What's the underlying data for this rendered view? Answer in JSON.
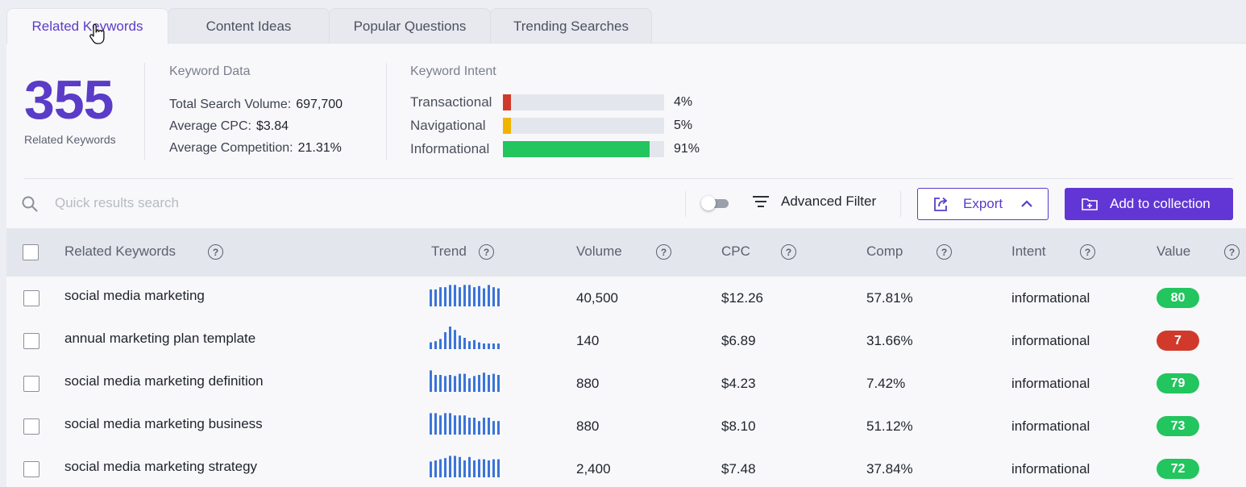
{
  "tabs": [
    {
      "label": "Related Keywords",
      "active": true
    },
    {
      "label": "Content Ideas",
      "active": false
    },
    {
      "label": "Popular Questions",
      "active": false
    },
    {
      "label": "Trending Searches",
      "active": false
    }
  ],
  "summary": {
    "count": "355",
    "count_label": "Related Keywords",
    "keyword_data": {
      "title": "Keyword Data",
      "items": [
        {
          "label": "Total Search Volume:",
          "value": "697,700"
        },
        {
          "label": "Average CPC:",
          "value": "$3.84"
        },
        {
          "label": "Average Competition:",
          "value": "21.31%"
        }
      ]
    },
    "keyword_intent": {
      "title": "Keyword Intent",
      "items": [
        {
          "label": "Transactional",
          "pct": "4%",
          "fraction": 0.04,
          "color": "#d13a2b"
        },
        {
          "label": "Navigational",
          "pct": "5%",
          "fraction": 0.05,
          "color": "#f0b400"
        },
        {
          "label": "Informational",
          "pct": "91%",
          "fraction": 0.91,
          "color": "#22c55e"
        }
      ]
    }
  },
  "toolbar": {
    "search_placeholder": "Quick results search",
    "advanced_filter_label": "Advanced Filter",
    "export_label": "Export",
    "add_collection_label": "Add to collection"
  },
  "table": {
    "columns": [
      "Related Keywords",
      "Trend",
      "Volume",
      "CPC",
      "Comp",
      "Intent",
      "Value"
    ],
    "rows": [
      {
        "keyword": "social media marketing",
        "volume": "40,500",
        "cpc": "$12.26",
        "comp": "57.81%",
        "intent": "informational",
        "value": "80",
        "value_color": "#22c55e",
        "trend": [
          0.75,
          0.75,
          0.85,
          0.85,
          0.95,
          0.95,
          0.85,
          0.95,
          0.95,
          0.85,
          0.9,
          0.8,
          0.95,
          0.85,
          0.8
        ]
      },
      {
        "keyword": "annual marketing plan template",
        "volume": "140",
        "cpc": "$6.89",
        "comp": "31.66%",
        "intent": "informational",
        "value": "7",
        "value_color": "#d13a2b",
        "trend": [
          0.3,
          0.35,
          0.45,
          0.75,
          1.0,
          0.85,
          0.6,
          0.5,
          0.35,
          0.4,
          0.3,
          0.25,
          0.25,
          0.25,
          0.25
        ]
      },
      {
        "keyword": "social media marketing definition",
        "volume": "880",
        "cpc": "$4.23",
        "comp": "7.42%",
        "intent": "informational",
        "value": "79",
        "value_color": "#22c55e",
        "trend": [
          0.95,
          0.75,
          0.75,
          0.7,
          0.75,
          0.7,
          0.8,
          0.8,
          0.6,
          0.7,
          0.75,
          0.85,
          0.75,
          0.8,
          0.75
        ]
      },
      {
        "keyword": "social media marketing business",
        "volume": "880",
        "cpc": "$8.10",
        "comp": "51.12%",
        "intent": "informational",
        "value": "73",
        "value_color": "#22c55e",
        "trend": [
          0.95,
          0.95,
          0.85,
          0.95,
          0.95,
          0.85,
          0.85,
          0.85,
          0.75,
          0.75,
          0.6,
          0.75,
          0.75,
          0.6,
          0.6
        ]
      },
      {
        "keyword": "social media marketing strategy",
        "volume": "2,400",
        "cpc": "$7.48",
        "comp": "37.84%",
        "intent": "informational",
        "value": "72",
        "value_color": "#22c55e",
        "trend": [
          0.7,
          0.75,
          0.8,
          0.85,
          0.95,
          0.95,
          0.9,
          0.75,
          0.9,
          0.75,
          0.8,
          0.8,
          0.75,
          0.8,
          0.8
        ]
      }
    ]
  }
}
